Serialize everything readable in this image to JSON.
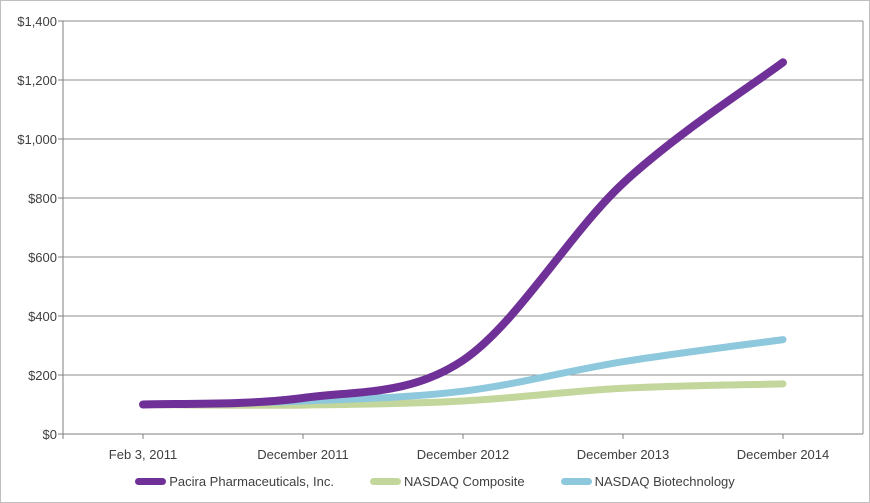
{
  "chart_data": {
    "type": "line",
    "smooth": true,
    "grid": "horizontal",
    "legend_position": "bottom",
    "categories": [
      "Feb 3, 2011",
      "December 2011",
      "December 2012",
      "December 2013",
      "December 2014"
    ],
    "series": [
      {
        "name": "Pacira Pharmaceuticals, Inc.",
        "color": "#6F3198",
        "stroke_width": 8,
        "values": [
          100,
          122,
          250,
          850,
          1260
        ]
      },
      {
        "name": "NASDAQ Composite",
        "color": "#C3D69B",
        "stroke_width": 7,
        "values": [
          100,
          98,
          112,
          155,
          170
        ]
      },
      {
        "name": "NASDAQ Biotechnology",
        "color": "#8DC8DC",
        "stroke_width": 7,
        "values": [
          100,
          112,
          145,
          245,
          320
        ]
      }
    ],
    "draw_order": [
      1,
      2,
      0
    ],
    "title": "",
    "xlabel": "",
    "ylabel": "",
    "ylim": [
      0,
      1400
    ],
    "y_ticks": [
      {
        "label": "$0",
        "value": 0
      },
      {
        "label": "$200",
        "value": 200
      },
      {
        "label": "$400",
        "value": 400
      },
      {
        "label": "$600",
        "value": 600
      },
      {
        "label": "$800",
        "value": 800
      },
      {
        "label": "$1,000",
        "value": 1000
      },
      {
        "label": "$1,200",
        "value": 1200
      },
      {
        "label": "$1,400",
        "value": 1400
      }
    ]
  },
  "legend": {
    "items": [
      {
        "label": "Pacira Pharmaceuticals, Inc.",
        "color": "#6F3198"
      },
      {
        "label": "NASDAQ Composite",
        "color": "#C3D69B"
      },
      {
        "label": "NASDAQ Biotechnology",
        "color": "#8DC8DC"
      }
    ]
  },
  "colors": {
    "gridline": "#8C8C8C",
    "axis": "#7F7F7F",
    "text": "#3F3F3F",
    "background": "#FFFFFF"
  }
}
